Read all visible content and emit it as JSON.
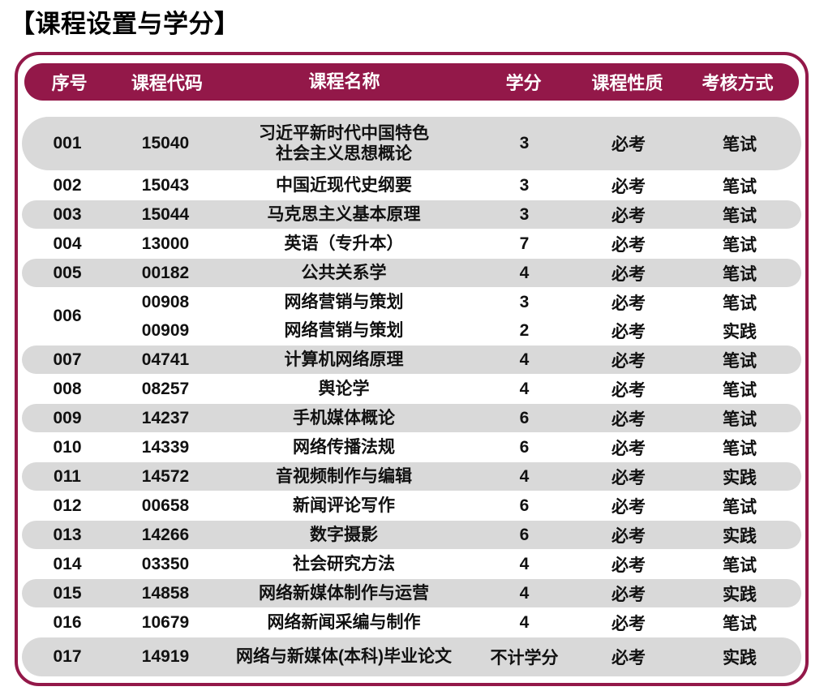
{
  "page_title": "【课程设置与学分】",
  "colors": {
    "accent": "#931849",
    "row_shade": "#D9D9D9",
    "header_text": "#FFFFFF",
    "body_text": "#111111"
  },
  "table": {
    "columns": [
      {
        "key": "seq",
        "label": "序号"
      },
      {
        "key": "code",
        "label": "课程代码"
      },
      {
        "key": "name",
        "label": "课程名称"
      },
      {
        "key": "credits",
        "label": "学分"
      },
      {
        "key": "nature",
        "label": "课程性质"
      },
      {
        "key": "assessment",
        "label": "考核方式"
      }
    ],
    "rows": [
      {
        "seq": "001",
        "shaded": true,
        "entries": [
          {
            "code": "15040",
            "name": [
              "习近平新时代中国特色",
              "社会主义思想概论"
            ],
            "credits": "3",
            "nature": "必考",
            "assessment": "笔试"
          }
        ]
      },
      {
        "seq": "002",
        "shaded": false,
        "entries": [
          {
            "code": "15043",
            "name": [
              "中国近现代史纲要"
            ],
            "credits": "3",
            "nature": "必考",
            "assessment": "笔试"
          }
        ]
      },
      {
        "seq": "003",
        "shaded": true,
        "entries": [
          {
            "code": "15044",
            "name": [
              "马克思主义基本原理"
            ],
            "credits": "3",
            "nature": "必考",
            "assessment": "笔试"
          }
        ]
      },
      {
        "seq": "004",
        "shaded": false,
        "entries": [
          {
            "code": "13000",
            "name": [
              "英语（专升本）"
            ],
            "credits": "7",
            "nature": "必考",
            "assessment": "笔试"
          }
        ]
      },
      {
        "seq": "005",
        "shaded": true,
        "entries": [
          {
            "code": "00182",
            "name": [
              "公共关系学"
            ],
            "credits": "4",
            "nature": "必考",
            "assessment": "笔试"
          }
        ]
      },
      {
        "seq": "006",
        "shaded": false,
        "entries": [
          {
            "code": "00908",
            "name": [
              "网络营销与策划"
            ],
            "credits": "3",
            "nature": "必考",
            "assessment": "笔试"
          },
          {
            "code": "00909",
            "name": [
              "网络营销与策划"
            ],
            "credits": "2",
            "nature": "必考",
            "assessment": "实践"
          }
        ]
      },
      {
        "seq": "007",
        "shaded": true,
        "entries": [
          {
            "code": "04741",
            "name": [
              "计算机网络原理"
            ],
            "credits": "4",
            "nature": "必考",
            "assessment": "笔试"
          }
        ]
      },
      {
        "seq": "008",
        "shaded": false,
        "entries": [
          {
            "code": "08257",
            "name": [
              "舆论学"
            ],
            "credits": "4",
            "nature": "必考",
            "assessment": "笔试"
          }
        ]
      },
      {
        "seq": "009",
        "shaded": true,
        "entries": [
          {
            "code": "14237",
            "name": [
              "手机媒体概论"
            ],
            "credits": "6",
            "nature": "必考",
            "assessment": "笔试"
          }
        ]
      },
      {
        "seq": "010",
        "shaded": false,
        "entries": [
          {
            "code": "14339",
            "name": [
              "网络传播法规"
            ],
            "credits": "6",
            "nature": "必考",
            "assessment": "笔试"
          }
        ]
      },
      {
        "seq": "011",
        "shaded": true,
        "entries": [
          {
            "code": "14572",
            "name": [
              "音视频制作与编辑"
            ],
            "credits": "4",
            "nature": "必考",
            "assessment": "实践"
          }
        ]
      },
      {
        "seq": "012",
        "shaded": false,
        "entries": [
          {
            "code": "00658",
            "name": [
              "新闻评论写作"
            ],
            "credits": "6",
            "nature": "必考",
            "assessment": "笔试"
          }
        ]
      },
      {
        "seq": "013",
        "shaded": true,
        "entries": [
          {
            "code": "14266",
            "name": [
              "数字摄影"
            ],
            "credits": "6",
            "nature": "必考",
            "assessment": "实践"
          }
        ]
      },
      {
        "seq": "014",
        "shaded": false,
        "entries": [
          {
            "code": "03350",
            "name": [
              "社会研究方法"
            ],
            "credits": "4",
            "nature": "必考",
            "assessment": "笔试"
          }
        ]
      },
      {
        "seq": "015",
        "shaded": true,
        "entries": [
          {
            "code": "14858",
            "name": [
              "网络新媒体制作与运营"
            ],
            "credits": "4",
            "nature": "必考",
            "assessment": "实践"
          }
        ]
      },
      {
        "seq": "016",
        "shaded": false,
        "entries": [
          {
            "code": "10679",
            "name": [
              "网络新闻采编与制作"
            ],
            "credits": "4",
            "nature": "必考",
            "assessment": "笔试"
          }
        ]
      },
      {
        "seq": "017",
        "shaded": true,
        "entries": [
          {
            "code": "14919",
            "name": [
              "网络与新媒体(本科)毕业论文"
            ],
            "credits": "不计学分",
            "nature": "必考",
            "assessment": "实践"
          }
        ]
      }
    ]
  }
}
